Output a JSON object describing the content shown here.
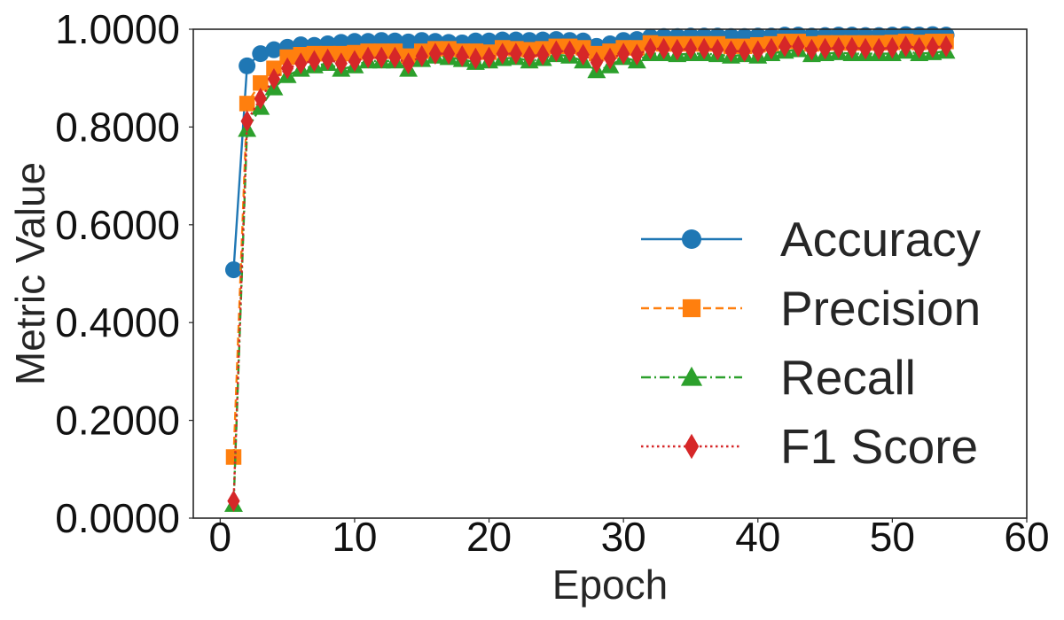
{
  "chart_data": {
    "type": "line",
    "xlabel": "Epoch",
    "ylabel": "Metric Value",
    "xlim": [
      -2,
      60
    ],
    "ylim": [
      0,
      1
    ],
    "x_ticks": [
      "0",
      "10",
      "20",
      "30",
      "40",
      "50",
      "60"
    ],
    "y_ticks": [
      "0.0000",
      "0.2000",
      "0.4000",
      "0.6000",
      "0.8000",
      "1.0000"
    ],
    "grid": false,
    "legend_position": "center-right",
    "x": [
      1,
      2,
      3,
      4,
      5,
      6,
      7,
      8,
      9,
      10,
      11,
      12,
      13,
      14,
      15,
      16,
      17,
      18,
      19,
      20,
      21,
      22,
      23,
      24,
      25,
      26,
      27,
      28,
      29,
      30,
      31,
      32,
      33,
      34,
      35,
      36,
      37,
      38,
      39,
      40,
      41,
      42,
      43,
      44,
      45,
      46,
      47,
      48,
      49,
      50,
      51,
      52,
      53,
      54
    ],
    "series": [
      {
        "name": "Accuracy",
        "color": "#1f77b4",
        "marker": "circle",
        "line_style": "solid",
        "values": [
          0.508,
          0.925,
          0.95,
          0.958,
          0.963,
          0.968,
          0.967,
          0.97,
          0.973,
          0.975,
          0.975,
          0.977,
          0.976,
          0.974,
          0.977,
          0.975,
          0.973,
          0.972,
          0.976,
          0.976,
          0.978,
          0.978,
          0.977,
          0.978,
          0.979,
          0.977,
          0.976,
          0.965,
          0.97,
          0.977,
          0.979,
          0.984,
          0.985,
          0.985,
          0.986,
          0.986,
          0.986,
          0.985,
          0.985,
          0.986,
          0.986,
          0.988,
          0.988,
          0.986,
          0.987,
          0.988,
          0.988,
          0.987,
          0.987,
          0.988,
          0.989,
          0.988,
          0.989,
          0.988
        ]
      },
      {
        "name": "Precision",
        "color": "#ff7f0e",
        "marker": "square",
        "line_style": "dashed",
        "values": [
          0.125,
          0.848,
          0.89,
          0.92,
          0.943,
          0.948,
          0.95,
          0.95,
          0.95,
          0.952,
          0.955,
          0.955,
          0.955,
          0.945,
          0.955,
          0.96,
          0.96,
          0.955,
          0.955,
          0.953,
          0.962,
          0.96,
          0.958,
          0.96,
          0.965,
          0.965,
          0.962,
          0.95,
          0.955,
          0.962,
          0.962,
          0.972,
          0.97,
          0.97,
          0.97,
          0.97,
          0.97,
          0.965,
          0.965,
          0.968,
          0.97,
          0.975,
          0.975,
          0.97,
          0.972,
          0.972,
          0.972,
          0.972,
          0.972,
          0.973,
          0.975,
          0.973,
          0.975,
          0.975
        ]
      },
      {
        "name": "Recall",
        "color": "#2ca02c",
        "marker": "triangle",
        "line_style": "dashdot",
        "values": [
          0.028,
          0.795,
          0.84,
          0.88,
          0.905,
          0.918,
          0.925,
          0.93,
          0.918,
          0.925,
          0.935,
          0.935,
          0.935,
          0.918,
          0.938,
          0.945,
          0.942,
          0.938,
          0.932,
          0.935,
          0.94,
          0.942,
          0.935,
          0.94,
          0.948,
          0.945,
          0.935,
          0.915,
          0.925,
          0.942,
          0.935,
          0.95,
          0.95,
          0.948,
          0.95,
          0.95,
          0.948,
          0.945,
          0.948,
          0.945,
          0.95,
          0.955,
          0.958,
          0.948,
          0.95,
          0.952,
          0.95,
          0.95,
          0.95,
          0.95,
          0.955,
          0.95,
          0.952,
          0.955
        ]
      },
      {
        "name": "F1 Score",
        "color": "#d62728",
        "marker": "diamond",
        "line_style": "dotted",
        "values": [
          0.035,
          0.812,
          0.858,
          0.898,
          0.92,
          0.93,
          0.935,
          0.938,
          0.93,
          0.935,
          0.942,
          0.942,
          0.942,
          0.93,
          0.945,
          0.95,
          0.95,
          0.945,
          0.94,
          0.942,
          0.95,
          0.95,
          0.945,
          0.948,
          0.955,
          0.955,
          0.948,
          0.932,
          0.94,
          0.95,
          0.948,
          0.96,
          0.96,
          0.958,
          0.96,
          0.96,
          0.958,
          0.955,
          0.955,
          0.955,
          0.96,
          0.965,
          0.965,
          0.958,
          0.96,
          0.962,
          0.962,
          0.96,
          0.96,
          0.962,
          0.965,
          0.962,
          0.963,
          0.965
        ]
      }
    ]
  }
}
